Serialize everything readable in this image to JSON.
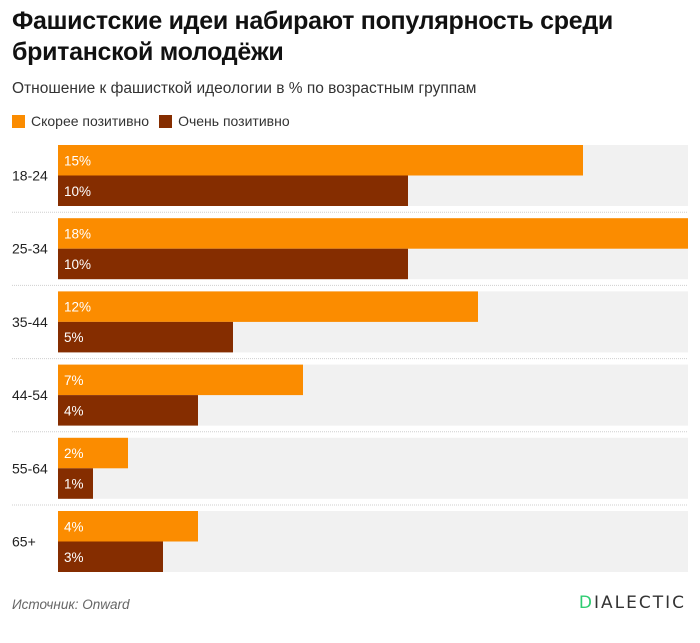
{
  "colors": {
    "series1": "#fb8c00",
    "series2": "#852d00",
    "track": "#f1f1f1",
    "label_text": "#ffffff",
    "brand_accent": "#2ecc71"
  },
  "header": {
    "title": "Фашистские идеи набирают популярность среди британской молодёжи",
    "subtitle": "Отношение к фашисткой идеологии в % по возрастным группам"
  },
  "legend": [
    {
      "label": "Скорее позитивно",
      "color": "#fb8c00"
    },
    {
      "label": "Очень позитивно",
      "color": "#852d00"
    }
  ],
  "footer": {
    "source": "Источник: Onward",
    "brand_first": "D",
    "brand_rest": "IALECTIC"
  },
  "chart_data": {
    "type": "bar",
    "orientation": "horizontal",
    "title": "Фашистские идеи набирают популярность среди британской молодёжи",
    "subtitle": "Отношение к фашисткой идеологии в % по возрастным группам",
    "xlabel": "",
    "ylabel": "",
    "xlim": [
      0,
      18
    ],
    "grid": false,
    "legend_position": "top-left",
    "categories": [
      "18-24",
      "25-34",
      "35-44",
      "44-54",
      "55-64",
      "65+"
    ],
    "series": [
      {
        "name": "Скорее позитивно",
        "values": [
          15,
          18,
          12,
          7,
          2,
          4
        ],
        "labels": [
          "15%",
          "18%",
          "12%",
          "7%",
          "2%",
          "4%"
        ]
      },
      {
        "name": "Очень позитивно",
        "values": [
          10,
          10,
          5,
          4,
          1,
          3
        ],
        "labels": [
          "10%",
          "10%",
          "5%",
          "4%",
          "1%",
          "3%"
        ]
      }
    ]
  }
}
